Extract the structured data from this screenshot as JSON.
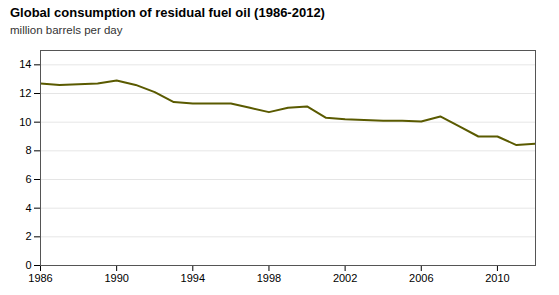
{
  "chart_data": {
    "type": "line",
    "title": "Global consumption  of residual fuel oil (1986-2012)",
    "subtitle": "million barrels  per day",
    "x": [
      1986,
      1987,
      1988,
      1989,
      1990,
      1991,
      1992,
      1993,
      1994,
      1995,
      1996,
      1997,
      1998,
      1999,
      2000,
      2001,
      2002,
      2003,
      2004,
      2005,
      2006,
      2007,
      2008,
      2009,
      2010,
      2011,
      2012
    ],
    "values": [
      12.7,
      12.6,
      12.65,
      12.7,
      12.9,
      12.6,
      12.1,
      11.4,
      11.3,
      11.3,
      11.3,
      11.0,
      10.7,
      11.0,
      11.1,
      10.3,
      10.2,
      10.15,
      10.1,
      10.1,
      10.05,
      10.4,
      9.7,
      9.0,
      9.0,
      8.4,
      8.5
    ],
    "color": "#5a5a00",
    "xlim": [
      1986,
      2012
    ],
    "xticks": [
      1986,
      1990,
      1994,
      1998,
      2002,
      2006,
      2010
    ],
    "ylim": [
      0,
      15
    ],
    "yticks": [
      0,
      2,
      4,
      6,
      8,
      10,
      12,
      14
    ],
    "grid": "y"
  }
}
